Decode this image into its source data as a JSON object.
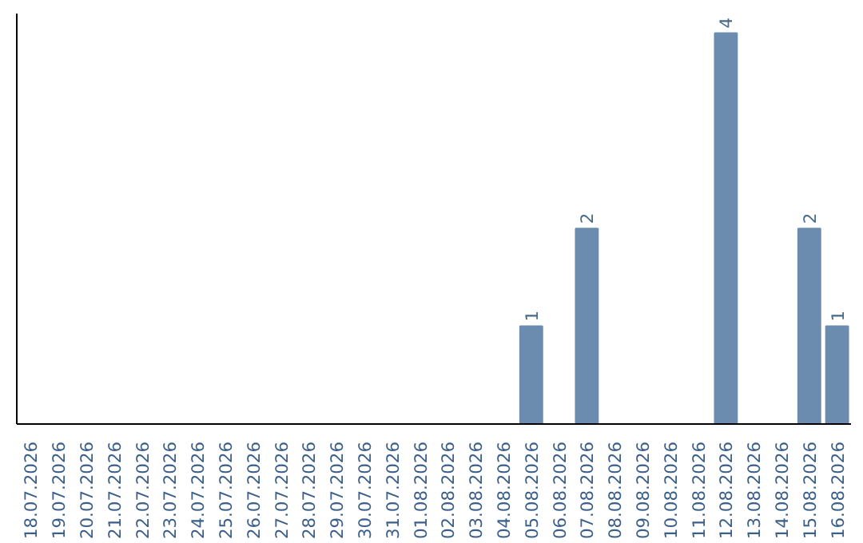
{
  "chart_data": {
    "type": "bar",
    "categories": [
      "18.07.2026",
      "19.07.2026",
      "20.07.2026",
      "21.07.2026",
      "22.07.2026",
      "23.07.2026",
      "24.07.2026",
      "25.07.2026",
      "26.07.2026",
      "27.07.2026",
      "28.07.2026",
      "29.07.2026",
      "30.07.2026",
      "31.07.2026",
      "01.08.2026",
      "02.08.2026",
      "03.08.2026",
      "04.08.2026",
      "05.08.2026",
      "06.08.2026",
      "07.08.2026",
      "08.08.2026",
      "09.08.2026",
      "10.08.2026",
      "11.08.2026",
      "12.08.2026",
      "13.08.2026",
      "14.08.2026",
      "15.08.2026",
      "16.08.2026"
    ],
    "values": [
      null,
      null,
      null,
      null,
      null,
      null,
      null,
      null,
      null,
      null,
      null,
      null,
      null,
      null,
      null,
      null,
      null,
      null,
      1,
      null,
      2,
      null,
      null,
      null,
      null,
      4,
      null,
      null,
      2,
      1
    ],
    "color": "#6b8cae",
    "data_labels": true,
    "tick_labels": "x",
    "grid": false
  }
}
